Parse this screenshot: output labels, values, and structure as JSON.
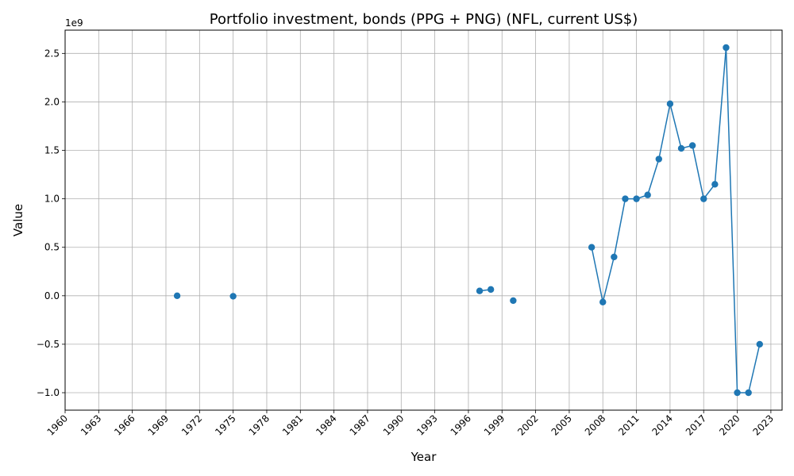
{
  "chart_data": {
    "type": "line",
    "title": "Portfolio investment, bonds (PPG + PNG) (NFL, current US$)",
    "xlabel": "Year",
    "ylabel": "Value",
    "y_offset_label": "1e9",
    "xlim": [
      1960,
      2024
    ],
    "ylim": [
      -1.18,
      2.74
    ],
    "grid": true,
    "x_ticks": [
      1960,
      1963,
      1966,
      1969,
      1972,
      1975,
      1978,
      1981,
      1984,
      1987,
      1990,
      1993,
      1996,
      1999,
      2002,
      2005,
      2008,
      2011,
      2014,
      2017,
      2020,
      2023
    ],
    "y_ticks": [
      -1.0,
      -0.5,
      0.0,
      0.5,
      1.0,
      1.5,
      2.0,
      2.5
    ],
    "y_tick_labels": [
      "−1.0",
      "−0.5",
      "0.0",
      "0.5",
      "1.0",
      "1.5",
      "2.0",
      "2.5"
    ],
    "color": "#1f77b4",
    "series": [
      {
        "points": [
          {
            "x": 1970,
            "y": 0.0
          },
          {
            "x": 1975,
            "y": -0.005
          },
          {
            "x": 1997,
            "y": 0.05
          },
          {
            "x": 1998,
            "y": 0.065
          },
          {
            "x": 2000,
            "y": -0.05
          },
          {
            "x": 2007,
            "y": 0.5
          },
          {
            "x": 2008,
            "y": -0.065
          },
          {
            "x": 2009,
            "y": 0.4
          },
          {
            "x": 2010,
            "y": 1.0
          },
          {
            "x": 2011,
            "y": 1.0
          },
          {
            "x": 2012,
            "y": 1.04
          },
          {
            "x": 2013,
            "y": 1.41
          },
          {
            "x": 2014,
            "y": 1.98
          },
          {
            "x": 2015,
            "y": 1.52
          },
          {
            "x": 2016,
            "y": 1.55
          },
          {
            "x": 2017,
            "y": 1.0
          },
          {
            "x": 2018,
            "y": 1.15
          },
          {
            "x": 2019,
            "y": 2.56
          },
          {
            "x": 2020,
            "y": -1.0
          },
          {
            "x": 2021,
            "y": -1.0
          },
          {
            "x": 2022,
            "y": -0.5
          }
        ]
      }
    ]
  }
}
